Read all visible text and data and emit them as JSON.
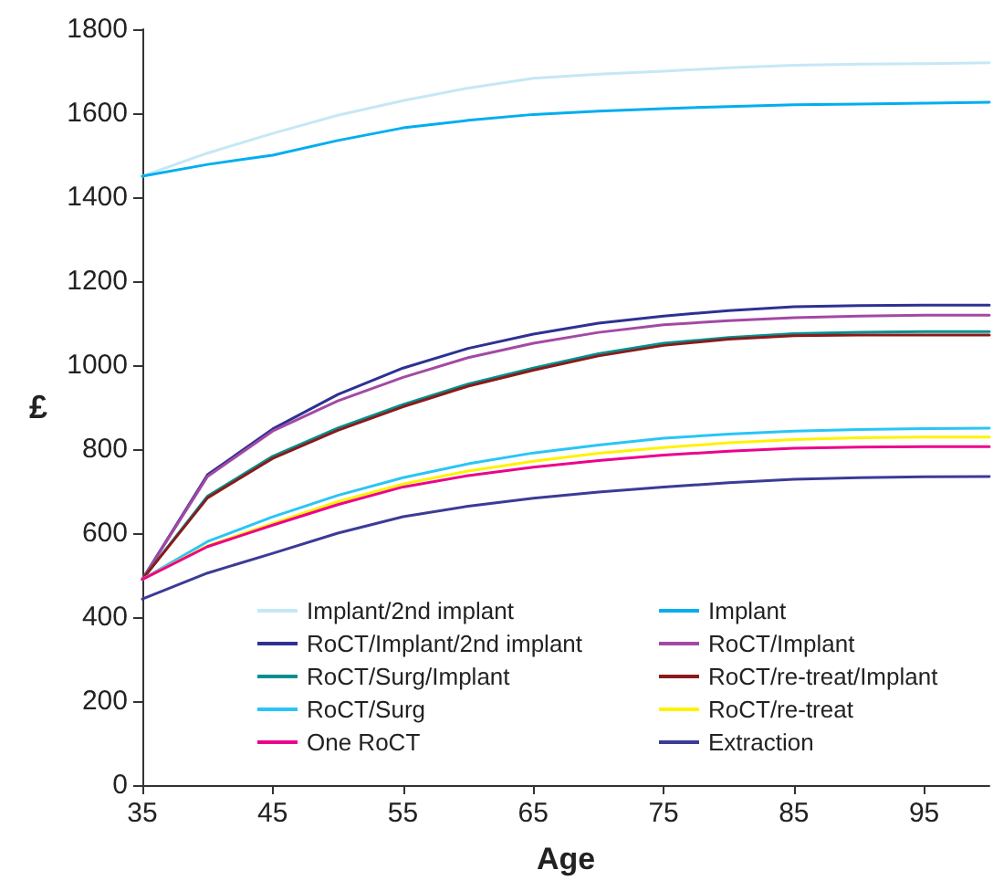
{
  "chart_data": {
    "type": "line",
    "xlabel": "Age",
    "ylabel": "£",
    "x": [
      35,
      40,
      45,
      50,
      55,
      60,
      65,
      70,
      75,
      80,
      85,
      90,
      95,
      100
    ],
    "xlim": [
      35,
      100
    ],
    "xticks": [
      35,
      45,
      55,
      65,
      75,
      85,
      95
    ],
    "ylim": [
      0,
      1800
    ],
    "yticks": [
      0,
      200,
      400,
      600,
      800,
      1000,
      1200,
      1400,
      1600,
      1800
    ],
    "grid": false,
    "marker": "none",
    "line_style": "solid",
    "legend": "bottom right",
    "series": [
      {
        "name": "Implant/2nd implant",
        "color": "#c5e8f5",
        "values": [
          1450,
          1505,
          1552,
          1595,
          1630,
          1660,
          1683,
          1693,
          1700,
          1708,
          1714,
          1717,
          1718,
          1720
        ]
      },
      {
        "name": "Implant",
        "color": "#00aeef",
        "values": [
          1450,
          1478,
          1500,
          1535,
          1565,
          1583,
          1597,
          1605,
          1611,
          1616,
          1620,
          1622,
          1624,
          1626
        ]
      },
      {
        "name": "RoCT/Implant/2nd implant",
        "color": "#2e3192",
        "values": [
          490,
          739,
          848,
          930,
          993,
          1040,
          1074,
          1100,
          1117,
          1130,
          1139,
          1142,
          1143,
          1143
        ]
      },
      {
        "name": "RoCT/Implant",
        "color": "#a349a4",
        "values": [
          490,
          735,
          843,
          915,
          971,
          1018,
          1052,
          1078,
          1096,
          1106,
          1113,
          1117,
          1119,
          1119
        ]
      },
      {
        "name": "RoCT/Surg/Implant",
        "color": "#00918f",
        "values": [
          490,
          688,
          783,
          850,
          906,
          955,
          993,
          1027,
          1052,
          1066,
          1075,
          1078,
          1080,
          1080
        ]
      },
      {
        "name": "RoCT/re-treat/Implant",
        "color": "#8b1a1a",
        "values": [
          490,
          684,
          778,
          845,
          901,
          950,
          988,
          1022,
          1047,
          1062,
          1070,
          1072,
          1072,
          1072
        ]
      },
      {
        "name": "RoCT/Surg",
        "color": "#29c5f6",
        "values": [
          490,
          580,
          639,
          690,
          732,
          765,
          791,
          810,
          826,
          836,
          843,
          847,
          849,
          850
        ]
      },
      {
        "name": "RoCT/re-treat",
        "color": "#fff200",
        "values": [
          490,
          570,
          623,
          675,
          717,
          748,
          771,
          790,
          804,
          815,
          823,
          827,
          829,
          829
        ]
      },
      {
        "name": "One RoCT",
        "color": "#ec008c",
        "values": [
          490,
          568,
          619,
          668,
          710,
          737,
          757,
          773,
          786,
          795,
          802,
          805,
          806,
          806
        ]
      },
      {
        "name": "Extraction",
        "color": "#3b3b98",
        "values": [
          443,
          505,
          552,
          600,
          639,
          664,
          683,
          698,
          710,
          720,
          728,
          732,
          734,
          735
        ]
      }
    ]
  }
}
